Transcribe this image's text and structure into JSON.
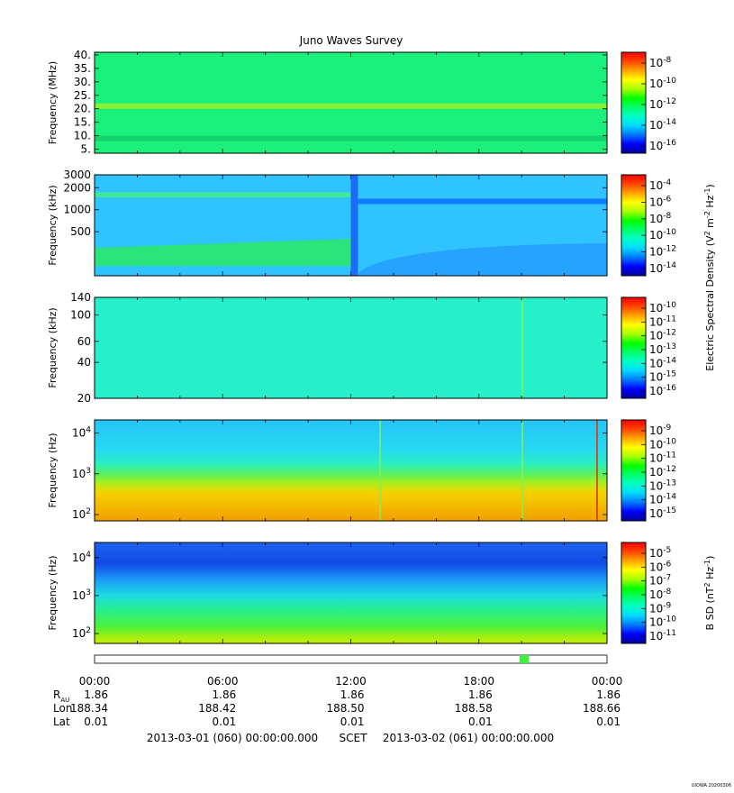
{
  "title": "Juno Waves Survey",
  "footer_tag": "UIOWA 20200306",
  "colors": {
    "rainbow": [
      "#00009a",
      "#0000ff",
      "#0078ff",
      "#00d8ff",
      "#00ffc8",
      "#00ff6e",
      "#00ff00",
      "#a8ff00",
      "#ffff00",
      "#ffa500",
      "#ff4500",
      "#ff0000"
    ]
  },
  "chart_data": [
    {
      "type": "heatmap",
      "name": "panel-1",
      "ylabel": "Frequency (MHz)",
      "yscale": "linear",
      "ylim": [
        3.5,
        41
      ],
      "yticks": [
        "40.",
        "35.",
        "30.",
        "25.",
        "20.",
        "15.",
        "10.",
        "5."
      ],
      "ytick_values": [
        40,
        35,
        30,
        25,
        20,
        15,
        10,
        5
      ],
      "background_color": "#1cf07c",
      "bands": [
        {
          "freq": 21,
          "color": "#86f033"
        },
        {
          "freq": 9,
          "color": "#14d36e"
        }
      ],
      "colorbar": {
        "label": "",
        "tick_labels": [
          "10-8",
          "10-10",
          "10-12",
          "10-14",
          "10-16"
        ],
        "exponents": [
          "-8",
          "-10",
          "-12",
          "-14",
          "-16"
        ]
      }
    },
    {
      "type": "heatmap",
      "name": "panel-2",
      "ylabel": "Frequency (kHz)",
      "yscale": "log",
      "ylim": [
        125,
        3000
      ],
      "yticks": [
        "3000",
        "2000",
        "1000",
        "500"
      ],
      "ytick_values": [
        3000,
        2000,
        1000,
        500
      ],
      "background_color": "#2fc3ff",
      "features": [
        {
          "label": "emission band before 12:00",
          "freq_range": [
            170,
            400
          ],
          "time_range": [
            "00:00",
            "12:00"
          ],
          "color": "#2be57c"
        },
        {
          "label": "band near 1600 kHz",
          "freq": 1600,
          "time_range": [
            "00:00",
            "12:00"
          ],
          "color": "#3fe6a0"
        },
        {
          "label": "dark band near 1300 kHz",
          "freq": 1300,
          "time_range": [
            "12:00",
            "24:00"
          ],
          "color": "#0f7bff"
        },
        {
          "label": "event",
          "time": "12:00"
        }
      ],
      "colorbar": {
        "label": "Electric Spectral Density (V2 m-2 Hz-1)",
        "tick_labels": [
          "10-4",
          "10-6",
          "10-8",
          "10-10",
          "10-12",
          "10-14"
        ],
        "exponents": [
          "-4",
          "-6",
          "-8",
          "-10",
          "-12",
          "-14"
        ]
      }
    },
    {
      "type": "heatmap",
      "name": "panel-3",
      "ylabel": "Frequency (kHz)",
      "yscale": "log",
      "ylim": [
        20,
        140
      ],
      "yticks": [
        "140",
        "100",
        "60",
        "40",
        "20"
      ],
      "ytick_values": [
        140,
        100,
        60,
        40,
        20
      ],
      "background_color": "#27efc9",
      "lines": [
        {
          "time": "20:00",
          "color": "#7ff25a"
        }
      ],
      "colorbar": {
        "label": "",
        "tick_labels": [
          "10-10",
          "10-11",
          "10-12",
          "10-13",
          "10-14",
          "10-15",
          "10-16"
        ],
        "exponents": [
          "-10",
          "-11",
          "-12",
          "-13",
          "-14",
          "-15",
          "-16"
        ]
      }
    },
    {
      "type": "heatmap",
      "name": "panel-4",
      "ylabel": "Frequency (Hz)",
      "yscale": "log",
      "ylim": [
        70,
        21000
      ],
      "yticks": [
        "10^4",
        "10^3",
        "10^2"
      ],
      "ytick_values": [
        10000,
        1000,
        100
      ],
      "gradient": [
        {
          "freq": 21000,
          "color": "#26c4f6"
        },
        {
          "freq": 4000,
          "color": "#27d8f2"
        },
        {
          "freq": 1800,
          "color": "#29eec3"
        },
        {
          "freq": 1000,
          "color": "#58f062"
        },
        {
          "freq": 600,
          "color": "#a9ef1c"
        },
        {
          "freq": 350,
          "color": "#f5d200"
        },
        {
          "freq": 70,
          "color": "#f2a000"
        }
      ],
      "lines": [
        {
          "time": "13:20",
          "color": "#7ff25a"
        },
        {
          "time": "20:00",
          "color": "#7ff25a"
        },
        {
          "time": "23:30",
          "color": "#d23c10"
        }
      ],
      "colorbar": {
        "label": "",
        "tick_labels": [
          "10-9",
          "10-10",
          "10-11",
          "10-12",
          "10-13",
          "10-14",
          "10-15"
        ],
        "exponents": [
          "-9",
          "-10",
          "-11",
          "-12",
          "-13",
          "-14",
          "-15"
        ]
      }
    },
    {
      "type": "heatmap",
      "name": "panel-5",
      "ylabel": "Frequency (Hz)",
      "yscale": "log",
      "ylim": [
        55,
        25000
      ],
      "yticks": [
        "10^4",
        "10^3",
        "10^2"
      ],
      "ytick_values": [
        10000,
        1000,
        100
      ],
      "gradient": [
        {
          "freq": 25000,
          "color": "#1e63f0"
        },
        {
          "freq": 7000,
          "color": "#1149e6"
        },
        {
          "freq": 2500,
          "color": "#1b9ef8"
        },
        {
          "freq": 1000,
          "color": "#1ddbe0"
        },
        {
          "freq": 400,
          "color": "#27ef8a"
        },
        {
          "freq": 150,
          "color": "#4ef03a"
        },
        {
          "freq": 80,
          "color": "#a7ef10"
        },
        {
          "freq": 55,
          "color": "#c4ee00"
        }
      ],
      "colorbar": {
        "label": "B SD (nT2 Hz-1)",
        "tick_labels": [
          "10-5",
          "10-6",
          "10-7",
          "10-8",
          "10-9",
          "10-10",
          "10-11"
        ],
        "exponents": [
          "-5",
          "-6",
          "-7",
          "-8",
          "-9",
          "-10",
          "-11"
        ]
      }
    }
  ],
  "time_axis": {
    "ticks": [
      "00:00",
      "06:00",
      "12:00",
      "18:00",
      "00:00"
    ],
    "tick_hours": [
      0,
      6,
      12,
      18,
      24
    ],
    "marker_hours": [
      19.9,
      20.2
    ],
    "marker_color": "#3cf03c"
  },
  "ephemeris": {
    "rows": [
      {
        "label": "R",
        "sub": "AU",
        "values": [
          "1.86",
          "1.86",
          "1.86",
          "1.86",
          "1.86"
        ]
      },
      {
        "label": "Lon",
        "sub": "",
        "values": [
          "188.34",
          "188.42",
          "188.50",
          "188.58",
          "188.66"
        ]
      },
      {
        "label": "Lat",
        "sub": "",
        "values": [
          "0.01",
          "0.01",
          "0.01",
          "0.01",
          "0.01"
        ]
      }
    ]
  },
  "footer": {
    "start": "2013-03-01 (060) 00:00:00.000",
    "scet": "SCET",
    "end": "2013-03-02 (061) 00:00:00.000"
  }
}
